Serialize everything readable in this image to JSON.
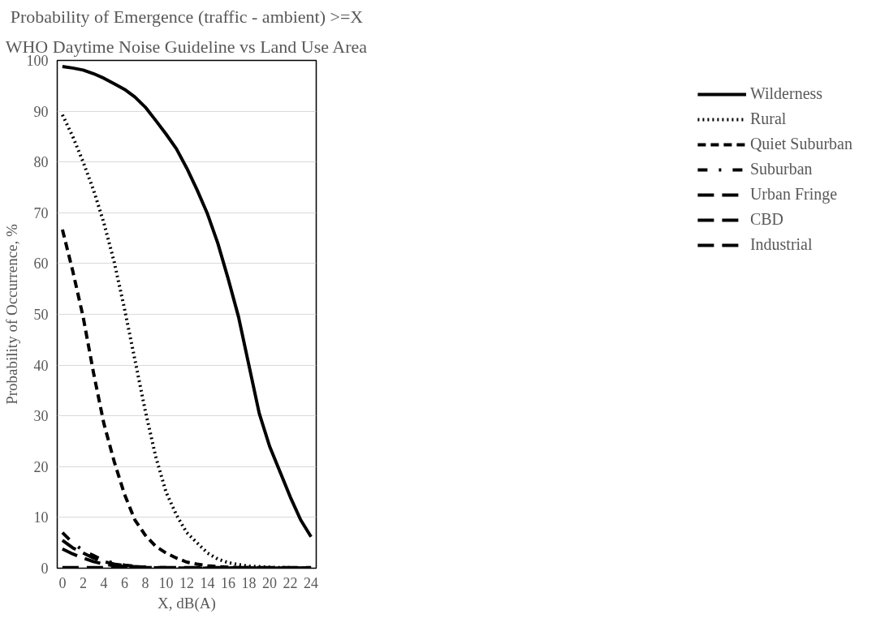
{
  "chart_data": {
    "type": "line",
    "title": "Probability of Emergence (traffic - ambient) >=X",
    "subtitle": "WHO Daytime Noise Guideline vs Land Use Area",
    "xlabel": "X, dB(A)",
    "ylabel": "Probability of Occurrence, %",
    "x": [
      0,
      1,
      2,
      3,
      4,
      5,
      6,
      7,
      8,
      9,
      10,
      11,
      12,
      13,
      14,
      15,
      16,
      17,
      18,
      19,
      20,
      21,
      22,
      23,
      24
    ],
    "xlim": [
      -0.5,
      24.5
    ],
    "xticks": [
      0,
      2,
      4,
      6,
      8,
      10,
      12,
      14,
      16,
      18,
      20,
      22,
      24
    ],
    "ylim": [
      0,
      100
    ],
    "yticks": [
      0,
      10,
      20,
      30,
      40,
      50,
      60,
      70,
      80,
      90,
      100
    ],
    "grid": "y",
    "legend": "right",
    "marker": "none",
    "series": [
      {
        "name": "Wilderness",
        "color": "#000000",
        "line_style": "solid",
        "values": [
          98.8,
          98.5,
          98.1,
          97.4,
          96.5,
          95.4,
          94.3,
          92.8,
          90.8,
          88.2,
          85.5,
          82.6,
          78.8,
          74.5,
          69.8,
          64,
          57,
          49.5,
          40,
          30.5,
          24,
          19,
          14,
          9.5,
          6.2
        ]
      },
      {
        "name": "Rural",
        "color": "#000000",
        "line_style": "dotted",
        "values": [
          89.3,
          85,
          80,
          74.5,
          68,
          60.3,
          51,
          41,
          31,
          22,
          15,
          10.5,
          7,
          5,
          3,
          1.8,
          1.1,
          0.7,
          0.4,
          0.3,
          0.2,
          0.1,
          0.1,
          0,
          0
        ]
      },
      {
        "name": "Quiet Suburban",
        "color": "#000000",
        "line_style": "dashed",
        "values": [
          66.7,
          58.5,
          49.5,
          38.5,
          28.5,
          21,
          14.5,
          9.5,
          6.5,
          4.3,
          3,
          2,
          1.2,
          0.8,
          0.5,
          0.3,
          0.2,
          0.1,
          0.1,
          0,
          0,
          0,
          0,
          0,
          0
        ]
      },
      {
        "name": "Suburban",
        "color": "#000000",
        "line_style": "dashdot",
        "values": [
          7,
          5,
          3.5,
          2.5,
          1.5,
          1,
          0.6,
          0.4,
          0.2,
          0.1,
          0.1,
          0,
          0,
          0,
          0,
          0,
          0,
          0,
          0,
          0,
          0,
          0,
          0,
          0,
          0
        ]
      },
      {
        "name": "Urban Fringe",
        "color": "#000000",
        "line_style": "longdash",
        "values": [
          5.5,
          4,
          3,
          2,
          1.3,
          0.8,
          0.5,
          0.3,
          0.2,
          0.1,
          0,
          0,
          0,
          0,
          0,
          0,
          0,
          0,
          0,
          0,
          0,
          0,
          0,
          0,
          0
        ]
      },
      {
        "name": "CBD",
        "color": "#000000",
        "line_style": "longdash",
        "values": [
          3.8,
          2.8,
          2,
          1.3,
          0.8,
          0.5,
          0.3,
          0.2,
          0.1,
          0,
          0,
          0,
          0,
          0,
          0,
          0,
          0,
          0,
          0,
          0,
          0,
          0,
          0,
          0,
          0
        ]
      },
      {
        "name": "Industrial",
        "color": "#000000",
        "line_style": "longdash",
        "values": [
          0.1,
          0.1,
          0.1,
          0.1,
          0.1,
          0.1,
          0.1,
          0.1,
          0.1,
          0.1,
          0.1,
          0.1,
          0.1,
          0.1,
          0.1,
          0.1,
          0.1,
          0.1,
          0.1,
          0.1,
          0.1,
          0.1,
          0.1,
          0.1,
          0.1
        ]
      }
    ]
  }
}
